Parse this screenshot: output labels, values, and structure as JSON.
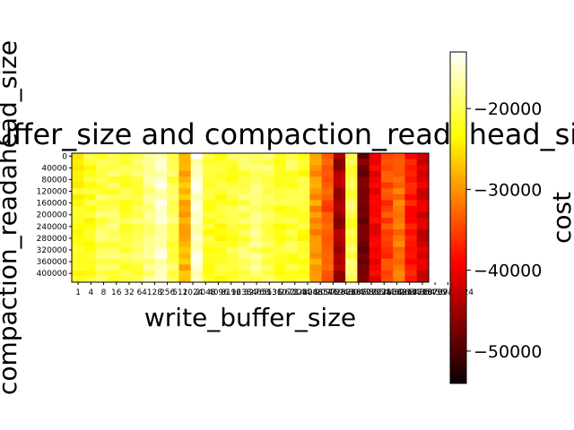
{
  "chart_data": {
    "type": "heatmap",
    "title": "write_buffer_size and compaction_readahead_size",
    "xlabel": "write_buffer_size",
    "ylabel": "compaction_readahead_size",
    "x": [
      "1",
      "4",
      "8",
      "16",
      "32",
      "64",
      "128",
      "256",
      "512",
      "1024",
      "2048",
      "4096",
      "8192",
      "16384",
      "32768",
      "65536",
      "131072",
      "262144",
      "524288",
      "1048576",
      "2097152",
      "4194304",
      "8388608",
      "16777216",
      "33554432",
      "67108864",
      "134217728",
      "268435456",
      "536870912",
      "1073741824"
    ],
    "x_tick_labels": [
      "1",
      "4",
      "8",
      "16",
      "32",
      "64",
      "128",
      "256",
      "512",
      "1024",
      "2048",
      "4096",
      "8192",
      "16384",
      "32768",
      "65536",
      "131072",
      "262144",
      "524288",
      "1048576",
      "2097152",
      "4194304",
      "8388608",
      "16777216",
      "33554432",
      "67108864",
      "134217728",
      "268435456",
      "536870912",
      "1073741824"
    ],
    "y": [
      0,
      20000,
      40000,
      60000,
      80000,
      100000,
      120000,
      140000,
      160000,
      180000,
      200000,
      220000,
      240000,
      260000,
      280000,
      300000,
      320000,
      340000,
      360000,
      380000,
      400000,
      420000
    ],
    "y_tick_labels": [
      "0",
      "40000",
      "80000",
      "120000",
      "160000",
      "200000",
      "240000",
      "280000",
      "320000",
      "360000",
      "400000"
    ],
    "column_base": [
      -23000,
      -22000,
      -20000,
      -20000,
      -21000,
      -20000,
      -18000,
      -15000,
      -20000,
      -28000,
      -15000,
      -22000,
      -22000,
      -21000,
      -20000,
      -19000,
      -20000,
      -22000,
      -21000,
      -22000,
      -30000,
      -34000,
      -45000,
      -20000,
      -48000,
      -40000,
      -35000,
      -32000,
      -38000,
      -42000
    ],
    "z_note": "cost",
    "colorbar": {
      "label": "cost",
      "vmin": -54000,
      "vmax": -13000,
      "ticks": [
        -20000,
        -30000,
        -40000,
        -50000
      ],
      "tick_labels": [
        "−20000",
        "−30000",
        "−40000",
        "−50000"
      ],
      "colormap": "hot"
    }
  }
}
